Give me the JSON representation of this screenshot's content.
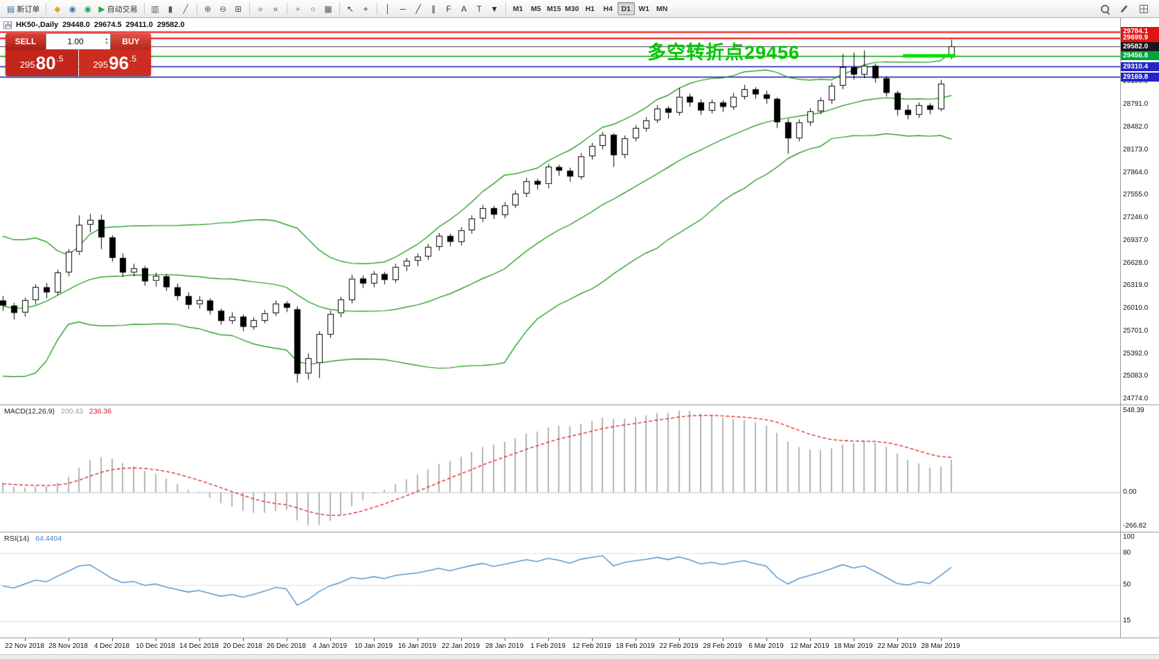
{
  "toolbar": {
    "left": [
      {
        "name": "new-order-button",
        "glyph": "▤",
        "glyph_color": "#2e6da4",
        "label": "新订单"
      },
      {
        "sep": true
      },
      {
        "name": "mql5-button",
        "glyph": "◆",
        "glyph_color": "#e6a817"
      },
      {
        "name": "community-button",
        "glyph": "◉",
        "glyph_color": "#3a7abd"
      },
      {
        "name": "market-button",
        "glyph": "◉",
        "glyph_color": "#2e9e5b"
      },
      {
        "name": "auto-trading-button",
        "glyph": "▶",
        "glyph_color": "#27a844",
        "label": "自动交易"
      },
      {
        "sep": true
      },
      {
        "name": "bars-mode-button",
        "glyph": "▥",
        "glyph_color": "#556"
      },
      {
        "name": "candles-mode-button",
        "glyph": "▮",
        "glyph_color": "#556"
      },
      {
        "name": "line-mode-button",
        "glyph": "╱",
        "glyph_color": "#556"
      },
      {
        "sep": true
      },
      {
        "name": "zoom-in-button",
        "glyph": "⊕",
        "glyph_color": "#556"
      },
      {
        "name": "zoom-out-button",
        "glyph": "⊖",
        "glyph_color": "#556"
      },
      {
        "name": "tile-windows-button",
        "glyph": "⊞",
        "glyph_color": "#556"
      },
      {
        "sep": true
      },
      {
        "name": "auto-scroll-button",
        "glyph": "»",
        "glyph_color": "#2e9e5b"
      },
      {
        "name": "chart-shift-button",
        "glyph": "«",
        "glyph_color": "#556"
      },
      {
        "sep": true
      },
      {
        "name": "indicators-button",
        "glyph": "+",
        "glyph_color": "#2e9e5b"
      },
      {
        "name": "periods-button",
        "glyph": "○",
        "glyph_color": "#556"
      },
      {
        "name": "templates-button",
        "glyph": "▦",
        "glyph_color": "#556"
      },
      {
        "sep": true
      },
      {
        "name": "cursor-button",
        "glyph": "↖",
        "glyph_color": "#333"
      },
      {
        "name": "crosshair-button",
        "glyph": "+",
        "glyph_color": "#333"
      },
      {
        "sep": true
      },
      {
        "name": "vertical-line-button",
        "glyph": "│",
        "glyph_color": "#333"
      },
      {
        "name": "horizontal-line-button",
        "glyph": "─",
        "glyph_color": "#333"
      },
      {
        "name": "trendline-button",
        "glyph": "╱",
        "glyph_color": "#333"
      },
      {
        "name": "channel-button",
        "glyph": "∥",
        "glyph_color": "#333"
      },
      {
        "name": "fibonacci-button",
        "glyph": "F",
        "glyph_color": "#333"
      },
      {
        "name": "text-button",
        "glyph": "A",
        "glyph_color": "#333"
      },
      {
        "name": "label-button",
        "glyph": "T",
        "glyph_color": "#333"
      },
      {
        "name": "shapes-button",
        "glyph": "▼",
        "glyph_color": "#333"
      },
      {
        "sep": true
      }
    ],
    "timeframes": [
      "M1",
      "M5",
      "M15",
      "M30",
      "H1",
      "H4",
      "D1",
      "W1",
      "MN"
    ],
    "active_timeframe": "D1",
    "right": [
      {
        "name": "search-icon-button",
        "shape": "magnifier"
      },
      {
        "name": "edit-icon-button",
        "shape": "pencil"
      },
      {
        "name": "grid-icon-button",
        "shape": "grid"
      }
    ]
  },
  "quote": {
    "symbol": "HK50-,Daily",
    "open": "29448.0",
    "high": "29674.5",
    "low": "29411.0",
    "close": "29582.0"
  },
  "one_click": {
    "sell_label": "SELL",
    "buy_label": "BUY",
    "volume": "1.00",
    "sell_price": {
      "full": "29580.5",
      "prefix": "295",
      "big": "80",
      "sup": ".5"
    },
    "buy_price": {
      "full": "29596.5",
      "prefix": "295",
      "big": "96",
      "sup": ".5"
    }
  },
  "annotation": {
    "text": "多空转折点29456",
    "color": "#00c800"
  },
  "levels": [
    {
      "price": 29784.1,
      "line_color": "#f00000",
      "line_width": 2,
      "tag_bg": "#e01414"
    },
    {
      "price": 29699.9,
      "line_color": "#f00000",
      "line_width": 2,
      "tag_bg": "#e01414"
    },
    {
      "price": 29582.0,
      "line_color": "#3a3a46",
      "line_width": 1,
      "tag_bg": "#16161e"
    },
    {
      "price": 29456.8,
      "line_color": "#009600",
      "line_width": 1.3,
      "tag_bg": "#00a43c"
    },
    {
      "price": 29310.4,
      "line_color": "#12129e",
      "line_width": 1.5,
      "tag_bg": "#2424c8"
    },
    {
      "price": 29169.8,
      "line_color": "#12129e",
      "line_width": 1.5,
      "tag_bg": "#2424c8"
    }
  ],
  "highlight_segment": {
    "price": 29456.8,
    "x_from": 1304,
    "x_to": 1380,
    "color": "#00e400",
    "thickness": 5
  },
  "macd_panel": {
    "label": "MACD(12,26,9)",
    "main_value": "200.43",
    "signal_value": "236.36",
    "axis_labels": [
      "548.39",
      "0.00",
      "-266.82"
    ]
  },
  "rsi_panel": {
    "label": "RSI(14)",
    "value": "64.4404",
    "axis_labels": [
      "100",
      "80",
      "50",
      "15"
    ],
    "levels": [
      80,
      50,
      15
    ]
  },
  "chart_data": {
    "type": "candlestick",
    "symbol": "HK50",
    "timeframe": "Daily",
    "x_labels": [
      "22 Nov 2018",
      "28 Nov 2018",
      "4 Dec 2018",
      "10 Dec 2018",
      "14 Dec 2018",
      "20 Dec 2018",
      "26 Dec 2018",
      "4 Jan 2019",
      "10 Jan 2019",
      "16 Jan 2019",
      "22 Jan 2019",
      "28 Jan 2019",
      "1 Feb 2019",
      "12 Feb 2019",
      "18 Feb 2019",
      "22 Feb 2019",
      "28 Feb 2019",
      "6 Mar 2019",
      "12 Mar 2019",
      "18 Mar 2019",
      "22 Mar 2019",
      "28 Mar 2019"
    ],
    "y_ticks": [
      29100,
      28791,
      28482,
      28173,
      27864,
      27555,
      27246,
      26937,
      26628,
      26319,
      26010,
      25701,
      25392,
      25083,
      24774
    ],
    "indicators": {
      "bollinger": {
        "period": 20,
        "deviation": 2
      },
      "macd": {
        "fast": 12,
        "slow": 26,
        "signal": 9
      },
      "rsi": {
        "period": 14
      }
    },
    "pre_history_closes": [
      26000,
      25800,
      25950,
      26100,
      26300,
      26450,
      26600,
      26550,
      26400,
      26550,
      26700,
      26500,
      26100,
      25600,
      25100,
      24900,
      25200,
      25600,
      26000,
      26300,
      26500,
      26400,
      26300,
      26400,
      26350,
      26300,
      26250,
      26350,
      26300,
      26350
    ],
    "candles": [
      [
        26120,
        26180,
        25980,
        26050
      ],
      [
        26050,
        26090,
        25860,
        25950
      ],
      [
        25950,
        26160,
        25900,
        26120
      ],
      [
        26120,
        26340,
        26070,
        26300
      ],
      [
        26300,
        26360,
        26150,
        26230
      ],
      [
        26230,
        26540,
        26190,
        26500
      ],
      [
        26500,
        26820,
        26450,
        26780
      ],
      [
        26780,
        27280,
        26740,
        27150
      ],
      [
        27150,
        27300,
        27050,
        27220
      ],
      [
        27220,
        27290,
        26820,
        26980
      ],
      [
        26980,
        27010,
        26650,
        26700
      ],
      [
        26700,
        26760,
        26440,
        26500
      ],
      [
        26500,
        26620,
        26450,
        26560
      ],
      [
        26560,
        26590,
        26320,
        26380
      ],
      [
        26380,
        26500,
        26310,
        26450
      ],
      [
        26450,
        26480,
        26250,
        26300
      ],
      [
        26300,
        26350,
        26120,
        26180
      ],
      [
        26180,
        26230,
        26000,
        26060
      ],
      [
        26060,
        26180,
        26010,
        26120
      ],
      [
        26120,
        26150,
        25930,
        25980
      ],
      [
        25980,
        26010,
        25790,
        25840
      ],
      [
        25840,
        25960,
        25800,
        25900
      ],
      [
        25900,
        25930,
        25700,
        25760
      ],
      [
        25760,
        25890,
        25720,
        25850
      ],
      [
        25850,
        25990,
        25810,
        25950
      ],
      [
        25950,
        26120,
        25910,
        26080
      ],
      [
        26080,
        26110,
        25960,
        26020
      ],
      [
        26000,
        26040,
        25000,
        25120
      ],
      [
        25120,
        25400,
        25040,
        25330
      ],
      [
        25260,
        25700,
        25060,
        25660
      ],
      [
        25660,
        25980,
        25610,
        25940
      ],
      [
        25940,
        26170,
        25890,
        26130
      ],
      [
        26130,
        26470,
        26080,
        26420
      ],
      [
        26420,
        26460,
        26290,
        26350
      ],
      [
        26350,
        26520,
        26300,
        26480
      ],
      [
        26480,
        26510,
        26340,
        26400
      ],
      [
        26400,
        26620,
        26360,
        26580
      ],
      [
        26580,
        26700,
        26520,
        26660
      ],
      [
        26660,
        26760,
        26590,
        26720
      ],
      [
        26720,
        26890,
        26670,
        26850
      ],
      [
        26850,
        27040,
        26800,
        27000
      ],
      [
        27000,
        27030,
        26860,
        26920
      ],
      [
        26920,
        27120,
        26870,
        27080
      ],
      [
        27080,
        27280,
        27030,
        27240
      ],
      [
        27240,
        27420,
        27190,
        27380
      ],
      [
        27380,
        27410,
        27230,
        27290
      ],
      [
        27290,
        27460,
        27240,
        27420
      ],
      [
        27420,
        27620,
        27380,
        27580
      ],
      [
        27580,
        27790,
        27530,
        27750
      ],
      [
        27750,
        27780,
        27630,
        27700
      ],
      [
        27700,
        27980,
        27650,
        27940
      ],
      [
        27940,
        27970,
        27820,
        27890
      ],
      [
        27890,
        27930,
        27740,
        27810
      ],
      [
        27810,
        28130,
        27770,
        28090
      ],
      [
        28090,
        28270,
        28040,
        28230
      ],
      [
        28230,
        28420,
        28180,
        28380
      ],
      [
        28380,
        28400,
        27940,
        28100
      ],
      [
        28100,
        28370,
        28060,
        28330
      ],
      [
        28330,
        28510,
        28290,
        28470
      ],
      [
        28470,
        28620,
        28420,
        28580
      ],
      [
        28580,
        28780,
        28540,
        28740
      ],
      [
        28740,
        28770,
        28600,
        28680
      ],
      [
        28680,
        29020,
        28640,
        28900
      ],
      [
        28900,
        28940,
        28760,
        28820
      ],
      [
        28820,
        28860,
        28650,
        28710
      ],
      [
        28710,
        28860,
        28670,
        28820
      ],
      [
        28820,
        28850,
        28690,
        28760
      ],
      [
        28760,
        28950,
        28720,
        28900
      ],
      [
        28900,
        29060,
        28860,
        29000
      ],
      [
        29000,
        29030,
        28870,
        28930
      ],
      [
        28930,
        28980,
        28800,
        28870
      ],
      [
        28870,
        28890,
        28470,
        28550
      ],
      [
        28550,
        28600,
        28120,
        28330
      ],
      [
        28330,
        28590,
        28290,
        28550
      ],
      [
        28550,
        28740,
        28500,
        28700
      ],
      [
        28700,
        28890,
        28660,
        28850
      ],
      [
        28850,
        29090,
        28800,
        29050
      ],
      [
        29050,
        29480,
        29000,
        29300
      ],
      [
        29300,
        29500,
        29130,
        29200
      ],
      [
        29200,
        29530,
        29150,
        29320
      ],
      [
        29320,
        29350,
        29090,
        29150
      ],
      [
        29150,
        29180,
        28900,
        28950
      ],
      [
        28950,
        28980,
        28640,
        28720
      ],
      [
        28720,
        28790,
        28590,
        28650
      ],
      [
        28650,
        28820,
        28610,
        28780
      ],
      [
        28780,
        28810,
        28660,
        28720
      ],
      [
        28730,
        29130,
        28700,
        29080
      ],
      [
        29448,
        29674.5,
        29411,
        29582
      ]
    ]
  }
}
